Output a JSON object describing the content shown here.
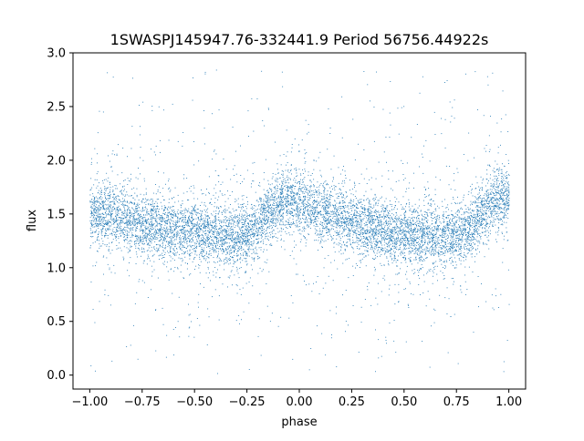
{
  "chart_data": {
    "type": "scatter",
    "title": "1SWASPJ145947.76-332441.9 Period 56756.44922s",
    "xlabel": "phase",
    "ylabel": "flux",
    "xlim": [
      -1.08,
      1.08
    ],
    "ylim": [
      -0.13,
      3.0
    ],
    "x_ticks": [
      -1.0,
      -0.75,
      -0.5,
      -0.25,
      0.0,
      0.25,
      0.5,
      0.75,
      1.0
    ],
    "x_tick_labels": [
      "−1.00",
      "−0.75",
      "−0.50",
      "−0.25",
      "0.00",
      "0.25",
      "0.50",
      "0.75",
      "1.00"
    ],
    "y_ticks": [
      0.0,
      0.5,
      1.0,
      1.5,
      2.0,
      2.5,
      3.0
    ],
    "y_tick_labels": [
      "0.0",
      "0.5",
      "1.0",
      "1.5",
      "2.0",
      "2.5",
      "3.0"
    ],
    "grid": false,
    "legend": "none",
    "marker_color": "#1f77b4",
    "phase_range": [
      -1.0,
      1.0
    ],
    "series": [
      {
        "phase_profile": [
          [
            -1.0,
            1.52
          ],
          [
            -0.9,
            1.5
          ],
          [
            -0.75,
            1.4
          ],
          [
            -0.6,
            1.35
          ],
          [
            -0.45,
            1.32
          ],
          [
            -0.3,
            1.3
          ],
          [
            -0.22,
            1.33
          ],
          [
            -0.12,
            1.58
          ],
          [
            -0.05,
            1.65
          ],
          [
            0.05,
            1.58
          ],
          [
            0.15,
            1.5
          ],
          [
            0.3,
            1.4
          ],
          [
            0.45,
            1.32
          ],
          [
            0.6,
            1.3
          ],
          [
            0.75,
            1.32
          ],
          [
            0.82,
            1.38
          ],
          [
            0.9,
            1.58
          ],
          [
            0.97,
            1.65
          ],
          [
            1.0,
            1.65
          ]
        ],
        "core_scatter": 0.14,
        "outlier_range": [
          0.0,
          2.85
        ]
      }
    ]
  }
}
